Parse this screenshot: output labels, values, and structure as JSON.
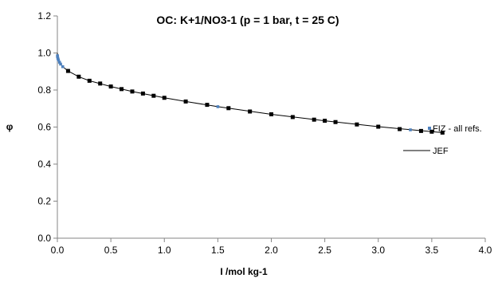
{
  "chart_data": {
    "type": "scatter",
    "title": "OC: K+1/NO3-1 (p = 1 bar, t = 25 C)",
    "xlabel": "I /mol kg-1",
    "ylabel": "φ",
    "xlim": [
      0,
      4
    ],
    "ylim": [
      0,
      1.2
    ],
    "x_ticks": [
      "0.0",
      "0.5",
      "1.0",
      "1.5",
      "2.0",
      "2.5",
      "3.0",
      "3.5",
      "4.0"
    ],
    "y_ticks": [
      "0.0",
      "0.2",
      "0.4",
      "0.6",
      "0.8",
      "1.0",
      "1.2"
    ],
    "grid": false,
    "legend_position": "right",
    "colors": {
      "blue": "#4f81bd",
      "black": "#000000"
    },
    "series": [
      {
        "name": "FIZ - all refs.",
        "kind": "points",
        "points": [
          [
            0.001,
            0.985
          ],
          [
            0.002,
            0.979
          ],
          [
            0.005,
            0.97
          ],
          [
            0.01,
            0.962
          ],
          [
            0.02,
            0.95
          ],
          [
            0.03,
            0.94
          ],
          [
            0.05,
            0.926
          ],
          [
            0.1,
            0.903
          ],
          [
            0.2,
            0.872
          ],
          [
            0.3,
            0.85
          ],
          [
            0.4,
            0.835
          ],
          [
            0.5,
            0.819
          ],
          [
            0.6,
            0.805
          ],
          [
            0.7,
            0.792
          ],
          [
            0.8,
            0.781
          ],
          [
            0.9,
            0.769
          ],
          [
            1.0,
            0.758
          ],
          [
            1.2,
            0.738
          ],
          [
            1.4,
            0.72
          ],
          [
            1.5,
            0.71
          ],
          [
            1.6,
            0.702
          ],
          [
            1.8,
            0.684
          ],
          [
            2.0,
            0.669
          ],
          [
            2.2,
            0.654
          ],
          [
            2.4,
            0.64
          ],
          [
            2.5,
            0.634
          ],
          [
            2.6,
            0.627
          ],
          [
            2.8,
            0.614
          ],
          [
            3.0,
            0.602
          ],
          [
            3.2,
            0.589
          ],
          [
            3.3,
            0.585
          ],
          [
            3.4,
            0.579
          ],
          [
            3.5,
            0.575
          ],
          [
            3.6,
            0.57
          ]
        ]
      },
      {
        "name": "JEF",
        "kind": "line",
        "points": [
          [
            0.0,
            1.0
          ],
          [
            0.002,
            0.982
          ],
          [
            0.005,
            0.972
          ],
          [
            0.01,
            0.962
          ],
          [
            0.02,
            0.95
          ],
          [
            0.05,
            0.926
          ],
          [
            0.1,
            0.903
          ],
          [
            0.2,
            0.872
          ],
          [
            0.3,
            0.85
          ],
          [
            0.5,
            0.819
          ],
          [
            0.7,
            0.792
          ],
          [
            1.0,
            0.758
          ],
          [
            1.2,
            0.738
          ],
          [
            1.5,
            0.71
          ],
          [
            2.0,
            0.669
          ],
          [
            2.5,
            0.634
          ],
          [
            3.0,
            0.602
          ],
          [
            3.5,
            0.575
          ],
          [
            3.6,
            0.57
          ]
        ]
      }
    ]
  }
}
